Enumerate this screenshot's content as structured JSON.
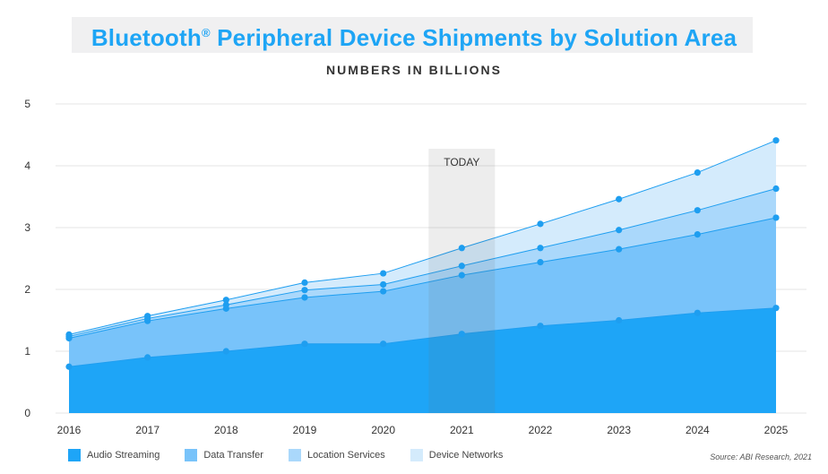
{
  "header": {
    "title_main": "Bluetooth",
    "title_mark": "®",
    "title_rest": " Peripheral Device Shipments by Solution Area",
    "subtitle": "NUMBERS IN BILLIONS"
  },
  "source": "Source: ABI Research, 2021",
  "chart_data": {
    "type": "area",
    "stacked": true,
    "title": "Bluetooth® Peripheral Device Shipments by Solution Area",
    "subtitle": "NUMBERS IN BILLIONS",
    "x": [
      "2016",
      "2017",
      "2018",
      "2019",
      "2020",
      "2021",
      "2022",
      "2023",
      "2024",
      "2025"
    ],
    "ylim": [
      0,
      5
    ],
    "yticks": [
      "0",
      "1",
      "2",
      "3",
      "4",
      "5"
    ],
    "grid": true,
    "legend_position": "bottom-left",
    "annotation": {
      "label": "TODAY",
      "x": "2021"
    },
    "cumulative_totals": {
      "Audio Streaming": [
        0.75,
        0.9,
        1.0,
        1.12,
        1.12,
        1.28,
        1.41,
        1.5,
        1.62,
        1.7
      ],
      "Data Transfer": [
        1.21,
        1.49,
        1.69,
        1.87,
        1.97,
        2.23,
        2.44,
        2.65,
        2.89,
        3.16
      ],
      "Location Services": [
        1.24,
        1.53,
        1.75,
        1.99,
        2.08,
        2.38,
        2.67,
        2.96,
        3.28,
        3.63
      ],
      "Device Networks": [
        1.27,
        1.57,
        1.83,
        2.11,
        2.26,
        2.67,
        3.06,
        3.46,
        3.89,
        4.41
      ]
    },
    "series": [
      {
        "name": "Audio Streaming",
        "color": "#1ea5f7",
        "values": [
          0.75,
          0.9,
          1.0,
          1.12,
          1.12,
          1.28,
          1.41,
          1.5,
          1.62,
          1.7
        ]
      },
      {
        "name": "Data Transfer",
        "color": "#78c3fa",
        "values": [
          0.46,
          0.59,
          0.69,
          0.75,
          0.85,
          0.95,
          1.03,
          1.15,
          1.27,
          1.46
        ]
      },
      {
        "name": "Location Services",
        "color": "#aad8fb",
        "values": [
          0.03,
          0.04,
          0.06,
          0.12,
          0.11,
          0.15,
          0.23,
          0.31,
          0.39,
          0.47
        ]
      },
      {
        "name": "Device Networks",
        "color": "#d4ebfc",
        "values": [
          0.03,
          0.04,
          0.08,
          0.12,
          0.18,
          0.29,
          0.39,
          0.5,
          0.61,
          0.78
        ]
      }
    ],
    "marker_color": "#1e9ef0"
  }
}
